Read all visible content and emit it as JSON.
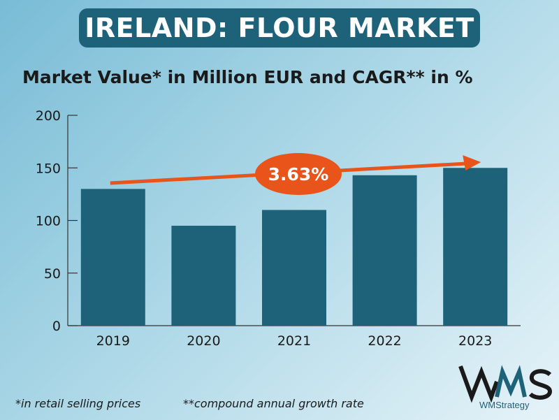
{
  "header": {
    "title": "IRELAND: FLOUR MARKET",
    "subtitle": "Market Value* in Million EUR and CAGR** in %"
  },
  "footnotes": {
    "retail": "*in retail selling prices",
    "cagr": "**compound annual growth rate"
  },
  "logo": {
    "text": "WMStrategy"
  },
  "colors": {
    "bar": "#1e6279",
    "accent": "#e8541a",
    "title_bg": "#1e6279"
  },
  "chart_data": {
    "type": "bar",
    "categories": [
      "2019",
      "2020",
      "2021",
      "2022",
      "2023"
    ],
    "values": [
      130,
      95,
      110,
      143,
      150
    ],
    "title": "Market Value* in Million EUR and CAGR** in %",
    "xlabel": "",
    "ylabel": "",
    "ylim": [
      0,
      200
    ],
    "yticks": [
      0,
      50,
      100,
      150,
      200
    ],
    "grid": false,
    "annotation": {
      "label": "3.63%",
      "type": "growth-arrow"
    }
  }
}
